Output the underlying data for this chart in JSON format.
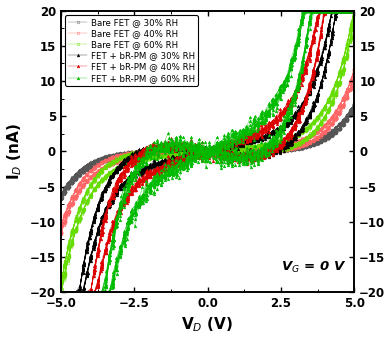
{
  "title": "",
  "xlabel": "V$_D$ (V)",
  "ylabel": "I$_D$ (nA)",
  "xlim": [
    -5,
    5
  ],
  "ylim": [
    -20,
    20
  ],
  "xticks": [
    -5,
    -2.5,
    0.0,
    2.5,
    5.0
  ],
  "yticks": [
    -20,
    -15,
    -10,
    -5,
    0,
    5,
    10,
    15,
    20
  ],
  "annotation": "V$_G$ = 0 V",
  "series": [
    {
      "label": "Bare FET @ 30% RH",
      "color": "#555555",
      "marker": "o",
      "filled": false,
      "I0": 0.018,
      "VT": 0.85,
      "hyst_amp": 0.3,
      "n_sweeps": 20
    },
    {
      "label": "Bare FET @ 40% RH",
      "color": "#ff6666",
      "marker": "o",
      "filled": false,
      "I0": 0.025,
      "VT": 0.82,
      "hyst_amp": 0.5,
      "n_sweeps": 20
    },
    {
      "label": "Bare FET @ 60% RH",
      "color": "#66dd00",
      "marker": "o",
      "filled": false,
      "I0": 0.038,
      "VT": 0.8,
      "hyst_amp": 0.8,
      "n_sweeps": 20
    },
    {
      "label": "FET + bR-PM @ 30% RH",
      "color": "#000000",
      "marker": "^",
      "filled": true,
      "I0": 0.08,
      "VT": 0.78,
      "hyst_amp": 2.0,
      "n_sweeps": 15
    },
    {
      "label": "FET + bR-PM @ 40% RH",
      "color": "#dd0000",
      "marker": "^",
      "filled": true,
      "I0": 0.12,
      "VT": 0.76,
      "hyst_amp": 2.8,
      "n_sweeps": 15
    },
    {
      "label": "FET + bR-PM @ 60% RH",
      "color": "#00bb00",
      "marker": "^",
      "filled": true,
      "I0": 0.2,
      "VT": 0.74,
      "hyst_amp": 3.8,
      "n_sweeps": 15
    }
  ]
}
